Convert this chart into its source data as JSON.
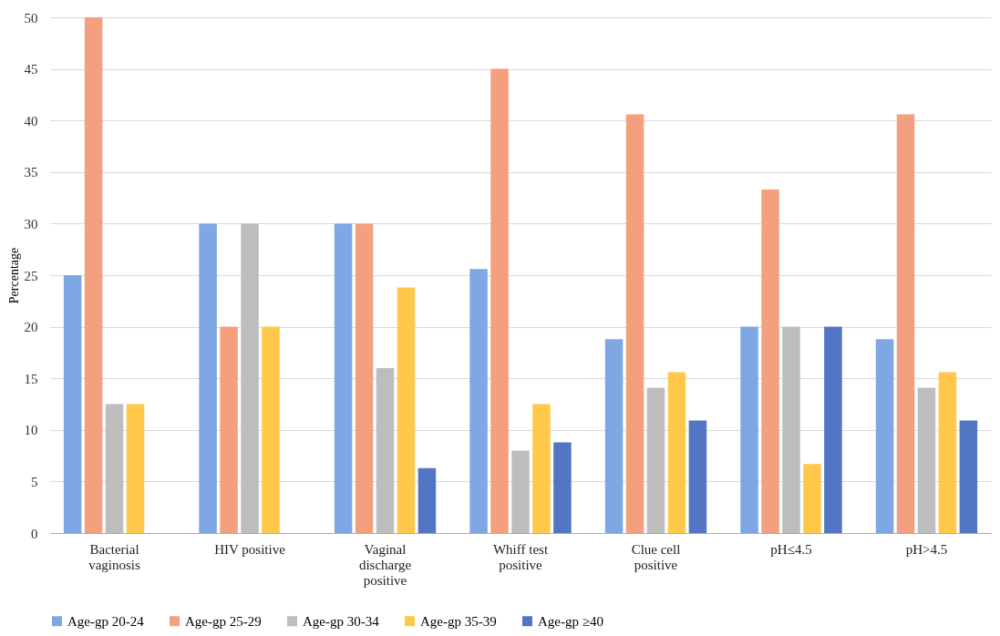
{
  "chart_data": {
    "type": "bar",
    "ylabel": "Percentage",
    "categories": [
      "Bacterial\nvaginosis",
      "HIV positive",
      "Vaginal\ndischarge\npositive",
      "Whiff test\npositive",
      "Clue cell\npositive",
      "pH≤4.5",
      "pH>4.5"
    ],
    "series": [
      {
        "name": "Age-gp 20-24",
        "color": "#7ea7e4",
        "values": [
          25,
          30,
          30,
          25.6,
          18.8,
          20,
          18.8
        ]
      },
      {
        "name": "Age-gp 25-29",
        "color": "#f4a07e",
        "values": [
          50,
          20,
          30,
          45,
          40.6,
          33.3,
          40.6
        ]
      },
      {
        "name": "Age-gp 30-34",
        "color": "#bdbdbd",
        "values": [
          12.5,
          30,
          16,
          8,
          14.1,
          20,
          14.1
        ]
      },
      {
        "name": "Age-gp 35-39",
        "color": "#ffc84a",
        "values": [
          12.5,
          20,
          23.8,
          12.5,
          15.6,
          6.7,
          15.6
        ]
      },
      {
        "name": "Age-gp ≥40",
        "color": "#5275c4",
        "values": [
          0,
          0,
          6.3,
          8.8,
          10.9,
          20,
          10.9
        ]
      }
    ],
    "ylim": [
      0,
      50
    ],
    "yticks": [
      0,
      5,
      10,
      15,
      20,
      25,
      30,
      35,
      40,
      45,
      50
    ],
    "grid": "y",
    "legend": "bottom"
  }
}
